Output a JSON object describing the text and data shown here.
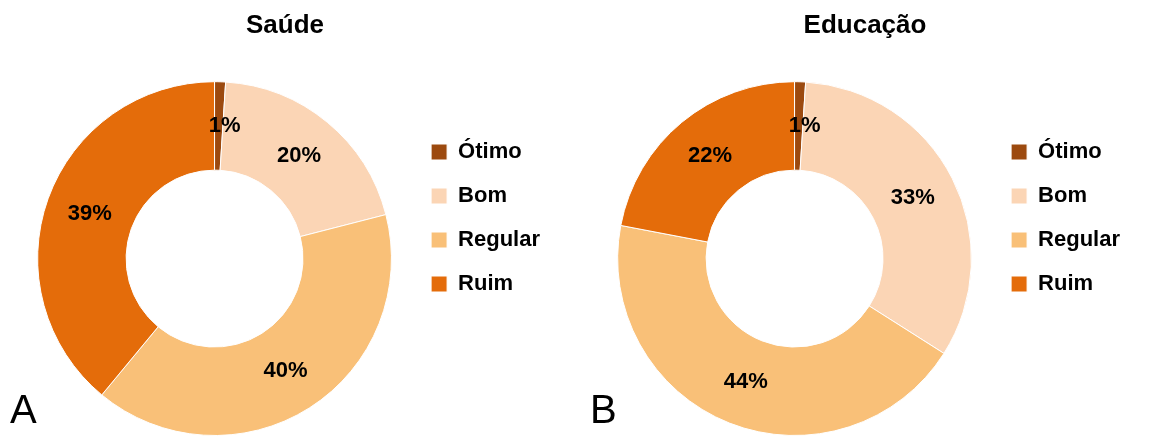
{
  "chart_data": [
    {
      "type": "donut",
      "title": "Saúde",
      "categories": [
        "Ótimo",
        "Bom",
        "Regular",
        "Ruim"
      ],
      "values": [
        1,
        20,
        40,
        39
      ],
      "value_labels": [
        "1%",
        "20%",
        "40%",
        "39%"
      ],
      "colors": [
        "#9c4a0f",
        "#fbd5b5",
        "#f9c078",
        "#e46c0a"
      ],
      "legend": "right",
      "annotations": [
        "A"
      ]
    },
    {
      "type": "donut",
      "title": "Educação",
      "categories": [
        "Ótimo",
        "Bom",
        "Regular",
        "Ruim"
      ],
      "values": [
        1,
        33,
        44,
        22
      ],
      "value_labels": [
        "1%",
        "33%",
        "44%",
        "22%"
      ],
      "colors": [
        "#9c4a0f",
        "#fbd5b5",
        "#f9c078",
        "#e46c0a"
      ],
      "legend": "right",
      "annotations": [
        "B"
      ]
    }
  ]
}
